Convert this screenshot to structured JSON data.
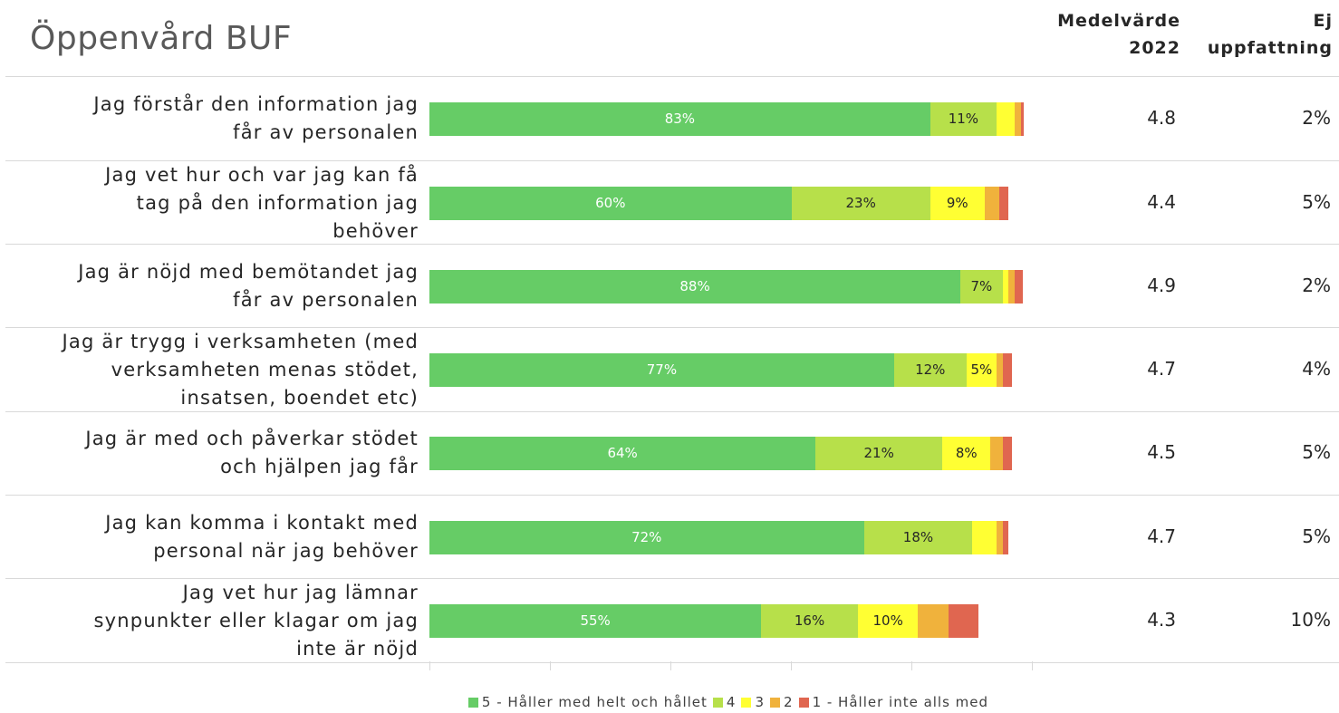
{
  "title": "Öppenvård BUF",
  "headers": {
    "mean": [
      "Medelvärde",
      "2022"
    ],
    "no_opinion": [
      "Ej",
      "uppfattning"
    ]
  },
  "colors": {
    "5": "#66cc66",
    "4": "#b7e04a",
    "3": "#ffff33",
    "2": "#f0b23c",
    "1": "#e06650"
  },
  "chart_data": {
    "type": "bar",
    "orientation": "horizontal-stacked-100",
    "categories": [
      [
        "Jag förstår den information jag",
        "får av personalen"
      ],
      [
        "Jag vet hur och var jag kan få",
        "tag på den information jag",
        "behöver"
      ],
      [
        "Jag är nöjd med bemötandet jag",
        "får av personalen"
      ],
      [
        "Jag är trygg i verksamheten (med",
        "verksamheten menas stödet,",
        "insatsen, boendet etc)"
      ],
      [
        "Jag är med och påverkar stödet",
        "och hjälpen jag får"
      ],
      [
        "Jag kan komma i kontakt med",
        "personal när jag behöver"
      ],
      [
        "Jag vet hur jag lämnar",
        "synpunkter eller klagar om jag",
        "inte är nöjd"
      ]
    ],
    "series": [
      {
        "name": "5 - Håller med helt och hållet",
        "key": "5",
        "values": [
          83,
          60,
          88,
          77,
          64,
          72,
          55
        ]
      },
      {
        "name": "4",
        "key": "4",
        "values": [
          11,
          23,
          7,
          12,
          21,
          18,
          16
        ]
      },
      {
        "name": "3",
        "key": "3",
        "values": [
          3,
          9,
          1,
          5,
          8,
          4,
          10
        ]
      },
      {
        "name": "2",
        "key": "2",
        "values": [
          1,
          2.5,
          1,
          1,
          2,
          1,
          5
        ]
      },
      {
        "name": "1 - Håller inte alls med",
        "key": "1",
        "values": [
          0.5,
          1.5,
          1.3,
          1.5,
          1.5,
          1,
          5
        ]
      }
    ],
    "value_labels": [
      [
        "83%",
        "11%",
        "",
        "",
        ""
      ],
      [
        "60%",
        "23%",
        "9%",
        "",
        ""
      ],
      [
        "88%",
        "7%",
        "",
        "",
        ""
      ],
      [
        "77%",
        "12%",
        "5%",
        "",
        ""
      ],
      [
        "64%",
        "21%",
        "8%",
        "",
        ""
      ],
      [
        "72%",
        "18%",
        "",
        "",
        ""
      ],
      [
        "55%",
        "16%",
        "10%",
        "",
        ""
      ]
    ],
    "mean_2022": [
      "4.8",
      "4.4",
      "4.9",
      "4.7",
      "4.5",
      "4.7",
      "4.3"
    ],
    "no_opinion": [
      "2%",
      "5%",
      "2%",
      "4%",
      "5%",
      "5%",
      "10%"
    ],
    "xlim": [
      0,
      100
    ],
    "legend_position": "bottom"
  }
}
